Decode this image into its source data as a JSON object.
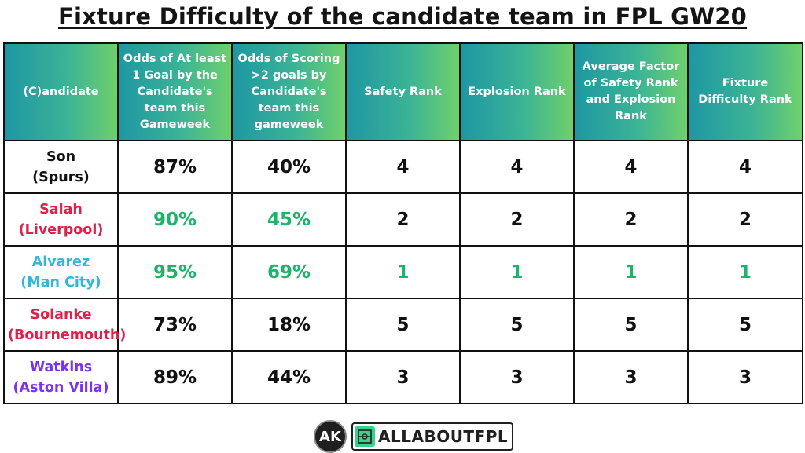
{
  "title": "Fixture Difficulty of the candidate team in FPL GW20",
  "headers": [
    "(C)andidate",
    "Odds of At least 1 Goal by the Candidate's team this Gameweek",
    "Odds of Scoring >2 goals by Candidate's team this gameweek",
    "Safety Rank",
    "Explosion Rank",
    "Average Factor of Safety Rank and Explosion Rank",
    "Fixture Difficulty Rank"
  ],
  "rows": [
    {
      "player": "Son",
      "team": "(Spurs)",
      "odds1": "87%",
      "odds2": "40%",
      "safety": "4",
      "explosion": "4",
      "average": "4",
      "difficulty": "4"
    },
    {
      "player": "Salah",
      "team": "(Liverpool)",
      "odds1": "90%",
      "odds2": "45%",
      "safety": "2",
      "explosion": "2",
      "average": "2",
      "difficulty": "2"
    },
    {
      "player": "Alvarez",
      "team": "(Man City)",
      "odds1": "95%",
      "odds2": "69%",
      "safety": "1",
      "explosion": "1",
      "average": "1",
      "difficulty": "1"
    },
    {
      "player": "Solanke",
      "team": "(Bournemouth)",
      "odds1": "73%",
      "odds2": "18%",
      "safety": "5",
      "explosion": "5",
      "average": "5",
      "difficulty": "5"
    },
    {
      "player": "Watkins",
      "team": "(Aston Villa)",
      "odds1": "89%",
      "odds2": "44%",
      "safety": "3",
      "explosion": "3",
      "average": "3",
      "difficulty": "3"
    }
  ],
  "colors": {
    "header_gradient": [
      "#1e97a3",
      "#6fd06b"
    ],
    "liverpool": "#e0204b",
    "man_city": "#2fb7dc",
    "bournemouth": "#e0204b",
    "aston_villa": "#7a32f0",
    "highlight_green": "#1db46a"
  },
  "footer": {
    "logo_mark": "AK",
    "brand": "ALLABOUTFPL"
  }
}
